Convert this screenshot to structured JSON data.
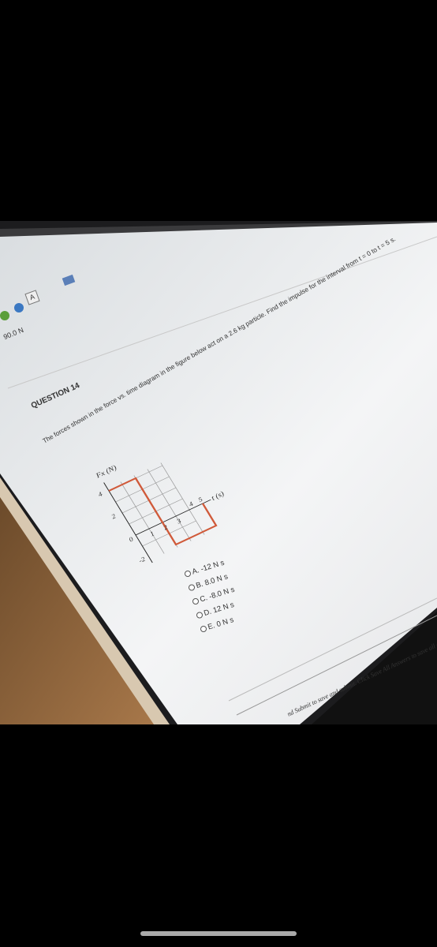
{
  "browser": {
    "tab_label": "90.0 N",
    "tab_icon_label": "A"
  },
  "question": {
    "title": "QUESTION 14",
    "text": "The forces shown in the force vs. time diagram in the figure below act on a 2.6 kg particle. Find the impulse for the interval from t = 0 to t = 5 s.",
    "figure": {
      "y_axis_label": "Fx (N)",
      "x_axis_label": "t (s)",
      "y_ticks": [
        4,
        2,
        0,
        -2
      ],
      "x_ticks": [
        1,
        2,
        3,
        4,
        5
      ]
    },
    "options": [
      "A. -12 N s",
      "B. 8.0 N s",
      "C. -8.0 N s",
      "D. 12 N s",
      "E. 0 N s"
    ]
  },
  "footer": {
    "text": "nd Submit to save and submit. Click Save All Answers to save all a"
  }
}
